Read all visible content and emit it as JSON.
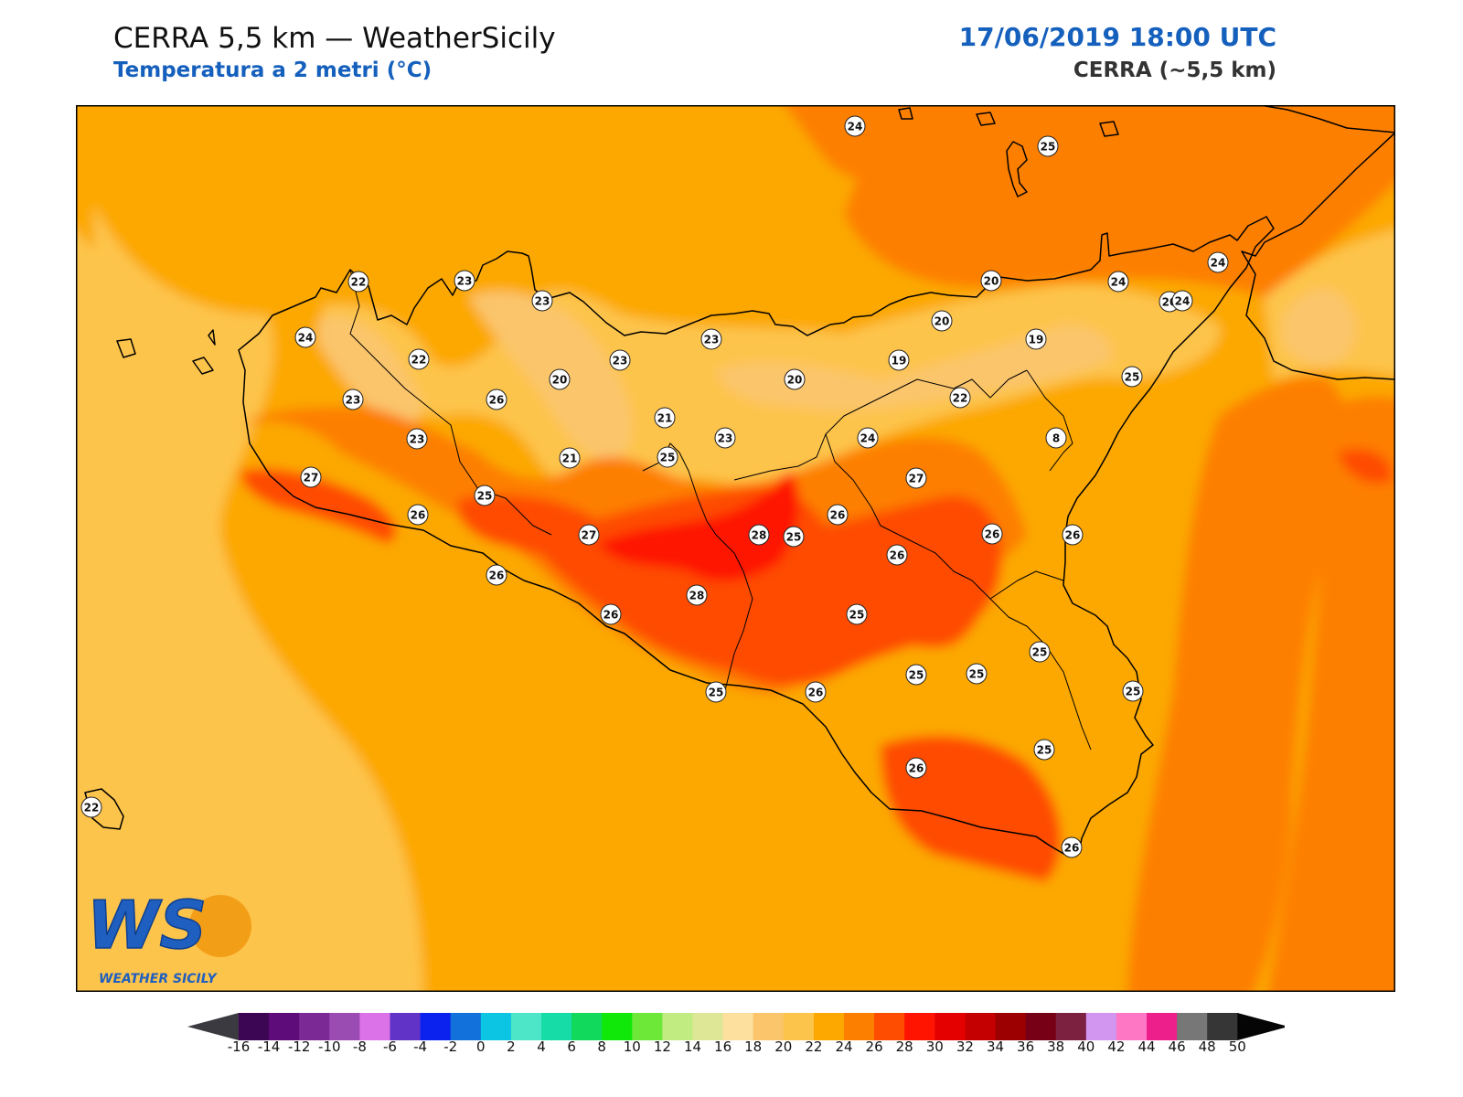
{
  "header": {
    "title": "CERRA 5,5 km — WeatherSicily",
    "subtitle": "Temperatura a 2 metri (°C)",
    "datetime": "17/06/2019 18:00 UTC",
    "model": "CERRA (~5,5 km)"
  },
  "logo": {
    "letters": "WS",
    "name": "WEATHER SICILY"
  },
  "station_values": [
    "24",
    "25",
    "22",
    "23",
    "23",
    "24",
    "23",
    "24",
    "20",
    "24",
    "22",
    "20",
    "20",
    "23",
    "19",
    "19",
    "20",
    "23",
    "26",
    "20",
    "24",
    "25",
    "22",
    "21",
    "8",
    "23",
    "24",
    "23",
    "21",
    "25",
    "27",
    "25",
    "25",
    "27",
    "26",
    "26",
    "27",
    "28",
    "26",
    "26",
    "26",
    "28",
    "26",
    "25",
    "26",
    "25",
    "25",
    "25",
    "25",
    "25",
    "26",
    "25",
    "26",
    "22",
    "26"
  ],
  "colorbar": {
    "unit": "°C",
    "labels": [
      "-16",
      "-14",
      "-12",
      "-10",
      "-8",
      "-6",
      "-4",
      "-2",
      "0",
      "2",
      "4",
      "6",
      "8",
      "10",
      "12",
      "14",
      "16",
      "18",
      "20",
      "22",
      "24",
      "26",
      "28",
      "30",
      "32",
      "34",
      "36",
      "38",
      "40",
      "42",
      "44",
      "46",
      "48",
      "50"
    ],
    "colors": [
      "#3d0654",
      "#5e0c7a",
      "#7b2a95",
      "#9b4cb3",
      "#dc72e8",
      "#6233c7",
      "#0b22ee",
      "#1271da",
      "#0bc5e3",
      "#4ee6c8",
      "#16dca7",
      "#11d95c",
      "#10e80a",
      "#6de838",
      "#c0ec82",
      "#dde795",
      "#fddf9e",
      "#fbc56c",
      "#fdc44b",
      "#fca800",
      "#fd7f00",
      "#fe4c00",
      "#fe1400",
      "#e50000",
      "#c50000",
      "#9c0000",
      "#780016",
      "#7d2140",
      "#d296f0",
      "#fe77c4",
      "#ec1f8b",
      "#777777",
      "#363636"
    ],
    "under_color": "#3a3a40",
    "over_color": "#050505"
  }
}
